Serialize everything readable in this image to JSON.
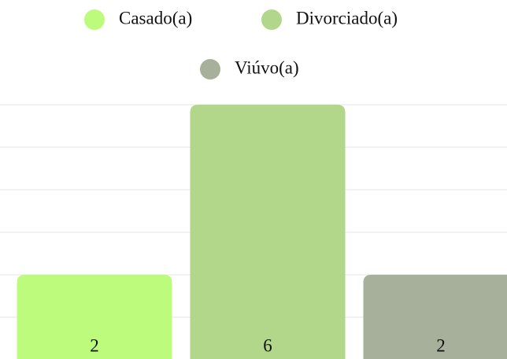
{
  "chart_data": {
    "type": "bar",
    "categories": [
      "Casado(a)",
      "Divorciado(a)",
      "Viúvo(a)"
    ],
    "values": [
      2,
      6,
      2
    ],
    "colors": [
      "#bdfb7c",
      "#b3d78a",
      "#a6b09b"
    ],
    "ylim": [
      0,
      6
    ],
    "yticks": [
      0,
      1,
      2,
      3,
      4,
      5,
      6
    ],
    "grid": true,
    "legend": "top"
  }
}
